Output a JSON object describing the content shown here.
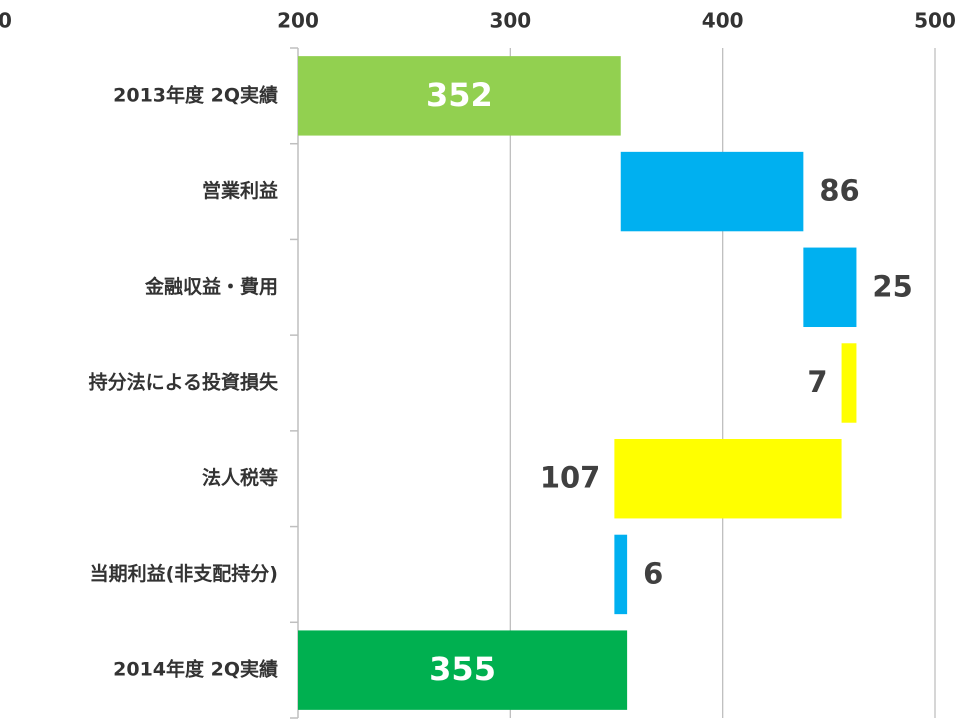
{
  "chart_data": {
    "type": "waterfall",
    "orientation": "horizontal",
    "categories": [
      "2013年度 2Q実績",
      "営業利益",
      "金融収益・費用",
      "持分法による投資損失",
      "法人税等",
      "当期利益(非支配持分)",
      "2014年度 2Q実績"
    ],
    "values": [
      352,
      86,
      25,
      -7,
      -107,
      6,
      355
    ],
    "value_labels": [
      "352",
      "86",
      "25",
      "7",
      "107",
      "6",
      "355"
    ],
    "measure": [
      "absolute",
      "relative",
      "relative",
      "relative",
      "relative",
      "relative",
      "absolute"
    ],
    "colors": [
      "#92d050",
      "#00b0f0",
      "#00b0f0",
      "#ffff00",
      "#ffff00",
      "#00b0f0",
      "#00b050"
    ],
    "xlim": [
      200,
      500
    ],
    "xticks": [
      200,
      300,
      400,
      500
    ],
    "grid": true,
    "x_axis_clipped_label": "0"
  }
}
